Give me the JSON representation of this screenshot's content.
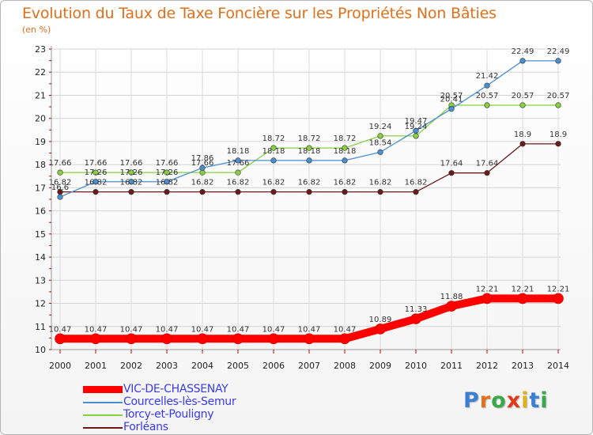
{
  "title": "Evolution du Taux de Taxe Foncière sur les Propriétés Non Bâties",
  "unit": "(en %)",
  "chart_data": {
    "type": "line",
    "categories": [
      "2000",
      "2001",
      "2002",
      "2003",
      "2004",
      "2005",
      "2006",
      "2007",
      "2008",
      "2009",
      "2010",
      "2011",
      "2012",
      "2013",
      "2014"
    ],
    "ylim": [
      10,
      23
    ],
    "yticks": [
      10,
      11,
      12,
      13,
      14,
      15,
      16,
      17,
      18,
      19,
      20,
      21,
      22,
      23
    ],
    "series": [
      {
        "name": "Forléans",
        "color": "#6b1a1a",
        "values": [
          16.82,
          16.82,
          16.82,
          16.82,
          16.82,
          16.82,
          16.82,
          16.82,
          16.82,
          16.82,
          16.82,
          17.64,
          17.64,
          18.9,
          18.9
        ],
        "labels": [
          "16.82",
          "16.82",
          "16.82",
          "16.82",
          "16.82",
          "16.82",
          "16.82",
          "16.82",
          "16.82",
          "16.82",
          "16.82",
          "17.64",
          "17.64",
          "18.9",
          "18.9"
        ]
      },
      {
        "name": "Torcy-et-Pouligny",
        "color": "#88d040",
        "values": [
          17.66,
          17.66,
          17.66,
          17.66,
          17.66,
          17.66,
          18.72,
          18.72,
          18.72,
          19.24,
          19.24,
          20.57,
          20.57,
          20.57,
          20.57
        ],
        "labels": [
          "17.66",
          "17.66",
          "17.66",
          "17.66",
          "17.66",
          "17.66",
          "18.72",
          "18.72",
          "18.72",
          "19.24",
          "19.24",
          "20.57",
          "20.57",
          "20.57",
          "20.57"
        ]
      },
      {
        "name": "Courcelles-lès-Semur",
        "color": "#4a8fd0",
        "values": [
          16.6,
          17.26,
          17.26,
          17.26,
          17.86,
          18.18,
          18.18,
          18.18,
          18.18,
          18.54,
          19.47,
          20.41,
          21.42,
          22.49,
          22.49
        ],
        "labels": [
          "16.6",
          "17.26",
          "17.26",
          "17.26",
          "17.86",
          "18.18",
          "18.18",
          "18.18",
          "18.18",
          "18.54",
          "19.47",
          "20.41",
          "21.42",
          "22.49",
          "22.49"
        ]
      },
      {
        "name": "VIC-DE-CHASSENAY",
        "color": "#ff0000",
        "values": [
          10.47,
          10.47,
          10.47,
          10.47,
          10.47,
          10.47,
          10.47,
          10.47,
          10.47,
          10.89,
          11.33,
          11.88,
          12.21,
          12.21,
          12.21
        ],
        "labels": [
          "10.47",
          "10.47",
          "10.47",
          "10.47",
          "10.47",
          "10.47",
          "10.47",
          "10.47",
          "10.47",
          "10.89",
          "11.33",
          "11.88",
          "12.21",
          "12.21",
          "12.21"
        ]
      }
    ]
  },
  "legend": [
    {
      "name": "VIC-DE-CHASSENAY",
      "color": "#ff0000"
    },
    {
      "name": "Courcelles-lès-Semur",
      "color": "#4a8fd0"
    },
    {
      "name": "Torcy-et-Pouligny",
      "color": "#88d040"
    },
    {
      "name": "Forléans",
      "color": "#6b1a1a"
    }
  ],
  "logo": [
    "P",
    "r",
    "o",
    "x",
    "i",
    "t",
    "i"
  ],
  "logo_colors": [
    "#3a7fd0",
    "#e0701a",
    "#3aa84a",
    "#e03a1a",
    "#e0b01a",
    "#3a7fd0",
    "#3aa84a"
  ]
}
